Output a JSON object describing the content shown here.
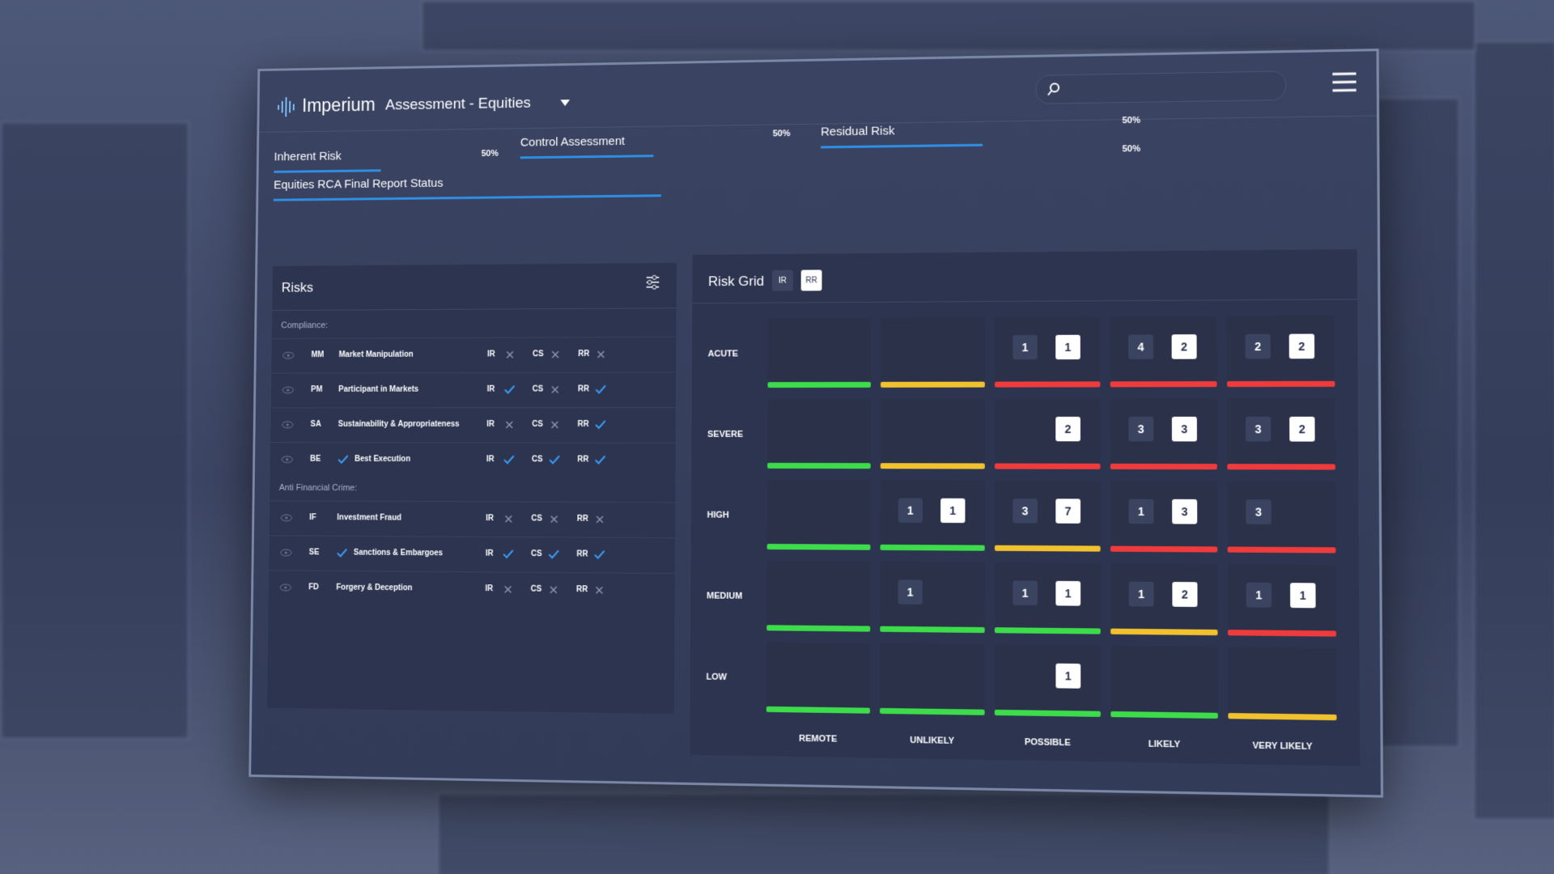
{
  "header": {
    "logo": "Imperium",
    "title": "Assessment - Equities"
  },
  "progress": [
    {
      "label": "Inherent Risk",
      "percent": {
        "value": 50,
        "label": "50%"
      }
    },
    {
      "label": "Control Assessment",
      "percent": {
        "value": 50,
        "label": "50%"
      }
    },
    {
      "label": "Residual Risk",
      "percent": {
        "value": 50,
        "label": "50%"
      }
    },
    {
      "label": "Equities RCA Final Report Status",
      "percent": {
        "value": 50,
        "label": "50%"
      }
    }
  ],
  "risks": {
    "title": "Risks",
    "status_labels": [
      "IR",
      "CS",
      "RR"
    ],
    "groups": [
      {
        "name": "Compliance:",
        "items": [
          {
            "code": "MM",
            "name": "Market Manipulation",
            "checked": false,
            "status": [
              false,
              false,
              false
            ]
          },
          {
            "code": "PM",
            "name": "Participant in Markets",
            "checked": false,
            "status": [
              true,
              false,
              true
            ]
          },
          {
            "code": "SA",
            "name": "Sustainability & Appropriateness",
            "checked": false,
            "status": [
              false,
              false,
              true
            ]
          },
          {
            "code": "BE",
            "name": "Best Execution",
            "checked": true,
            "status": [
              true,
              true,
              true
            ]
          }
        ]
      },
      {
        "name": "Anti Financial Crime:",
        "items": [
          {
            "code": "IF",
            "name": "Investment Fraud",
            "checked": false,
            "status": [
              false,
              false,
              false
            ]
          },
          {
            "code": "SE",
            "name": "Sanctions & Embargoes",
            "checked": true,
            "status": [
              true,
              true,
              true
            ]
          },
          {
            "code": "FD",
            "name": "Forgery & Deception",
            "checked": false,
            "status": [
              false,
              false,
              false
            ]
          }
        ]
      }
    ]
  },
  "risk_grid": {
    "title": "Risk Grid",
    "toggles": [
      "IR",
      "RR"
    ],
    "rows": [
      "ACUTE",
      "SEVERE",
      "HIGH",
      "MEDIUM",
      "LOW"
    ],
    "columns": [
      "REMOTE",
      "UNLIKELY",
      "POSSIBLE",
      "LIKELY",
      "VERY LIKELY"
    ],
    "cells": [
      [
        {
          "ir": null,
          "rr": null,
          "color": "#3ddc4a"
        },
        {
          "ir": null,
          "rr": null,
          "color": "#f2c12e"
        },
        {
          "ir": 1,
          "rr": 1,
          "color": "#ef3b3b"
        },
        {
          "ir": 4,
          "rr": 2,
          "color": "#ef3b3b"
        },
        {
          "ir": 2,
          "rr": 2,
          "color": "#ef3b3b"
        }
      ],
      [
        {
          "ir": null,
          "rr": null,
          "color": "#3ddc4a"
        },
        {
          "ir": null,
          "rr": null,
          "color": "#f2c12e"
        },
        {
          "ir": null,
          "rr": 2,
          "color": "#ef3b3b"
        },
        {
          "ir": 3,
          "rr": 3,
          "color": "#ef3b3b"
        },
        {
          "ir": 3,
          "rr": 2,
          "color": "#ef3b3b"
        }
      ],
      [
        {
          "ir": null,
          "rr": null,
          "color": "#3ddc4a"
        },
        {
          "ir": 1,
          "rr": 1,
          "color": "#3ddc4a"
        },
        {
          "ir": 3,
          "rr": 7,
          "color": "#f2c12e"
        },
        {
          "ir": 1,
          "rr": 3,
          "color": "#ef3b3b"
        },
        {
          "ir": 3,
          "rr": null,
          "color": "#ef3b3b"
        }
      ],
      [
        {
          "ir": null,
          "rr": null,
          "color": "#3ddc4a"
        },
        {
          "ir": 1,
          "rr": null,
          "color": "#3ddc4a"
        },
        {
          "ir": 1,
          "rr": 1,
          "color": "#3ddc4a"
        },
        {
          "ir": 1,
          "rr": 2,
          "color": "#f2c12e"
        },
        {
          "ir": 1,
          "rr": 1,
          "color": "#ef3b3b"
        }
      ],
      [
        {
          "ir": null,
          "rr": null,
          "color": "#3ddc4a"
        },
        {
          "ir": null,
          "rr": null,
          "color": "#3ddc4a"
        },
        {
          "ir": null,
          "rr": 1,
          "color": "#3ddc4a"
        },
        {
          "ir": null,
          "rr": null,
          "color": "#3ddc4a"
        },
        {
          "ir": null,
          "rr": null,
          "color": "#f2c12e"
        }
      ]
    ]
  }
}
